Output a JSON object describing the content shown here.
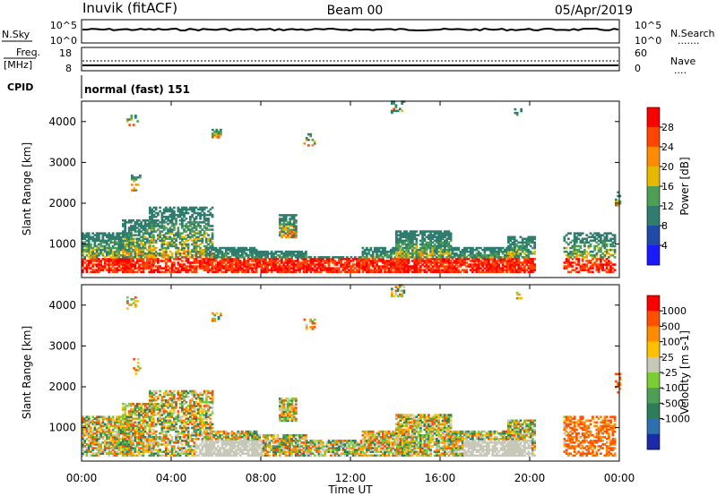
{
  "header": {
    "station": "Inuvik (fitACF)",
    "beam": "Beam 00",
    "date": "05/Apr/2019"
  },
  "strip_nsky": {
    "label": "N.Sky",
    "left_ticks": [
      "10^5",
      "10^0"
    ],
    "right_ticks": [
      "10^5",
      "10^0"
    ],
    "right_label": "N.Search",
    "right_label_marker": "......."
  },
  "strip_freq": {
    "label_line1": "Freq.",
    "label_line2": "[MHz]",
    "left_ticks": [
      "18",
      "8"
    ],
    "right_ticks": [
      "60",
      "0"
    ],
    "right_label": "Nave",
    "right_label_marker": "...."
  },
  "cpid": {
    "label": "CPID",
    "value": "normal (fast) 151"
  },
  "chart_data": [
    {
      "type": "heatmap",
      "title": "",
      "ylabel": "Slant Range [km]",
      "xlabel": "",
      "x_ticks": [
        "00:00",
        "04:00",
        "08:00",
        "12:00",
        "16:00",
        "20:00",
        "00:00"
      ],
      "y_ticks": [
        1000,
        2000,
        3000,
        4000
      ],
      "ylim": [
        180,
        4500
      ],
      "colorbar": {
        "label": "Power [dB]",
        "ticks": [
          "4",
          "8",
          "12",
          "16",
          "20",
          "24",
          "28"
        ],
        "colors": [
          "#1a1aff",
          "#1f4aa8",
          "#2e7d6e",
          "#4e9f55",
          "#e6b800",
          "#ff8c00",
          "#ff4500",
          "#ff0000"
        ]
      }
    },
    {
      "type": "heatmap",
      "title": "",
      "ylabel": "Slant Range [km]",
      "xlabel": "Time UT",
      "x_ticks": [
        "00:00",
        "04:00",
        "08:00",
        "12:00",
        "16:00",
        "20:00",
        "00:00"
      ],
      "y_ticks": [
        1000,
        2000,
        3000,
        4000
      ],
      "ylim": [
        180,
        4500
      ],
      "colorbar": {
        "label": "Velocity [m s-1]",
        "ticks": [
          "1000",
          "500",
          "100",
          "25",
          "-25",
          "-100",
          "-500",
          "-1000"
        ],
        "colors": [
          "#1a2aa8",
          "#2e6fb0",
          "#2e7d5a",
          "#4e9f55",
          "#7ccc33",
          "#c8c8b8",
          "#ffc000",
          "#ff8c00",
          "#ff5000",
          "#ff0000"
        ]
      }
    }
  ]
}
